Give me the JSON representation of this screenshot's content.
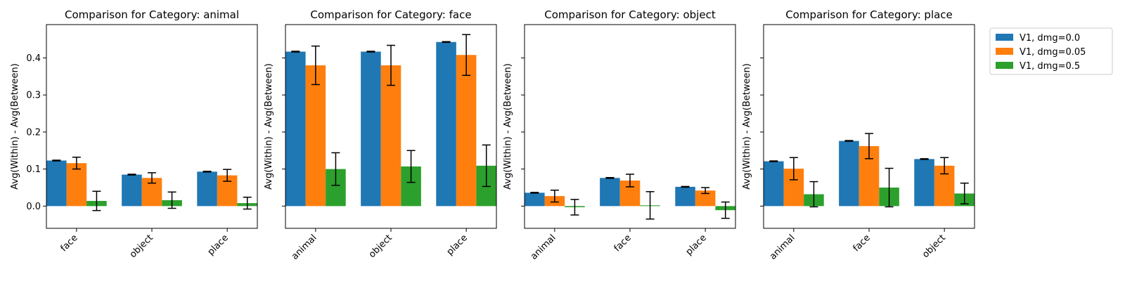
{
  "chart_data": [
    {
      "type": "bar",
      "title": "Comparison for Category: animal",
      "ylabel": "Avg(Within) - Avg(Between)",
      "ylim": [
        -0.06,
        0.49
      ],
      "yticks": [
        "0.0",
        "0.1",
        "0.2",
        "0.3",
        "0.4"
      ],
      "categories": [
        "face",
        "object",
        "place"
      ],
      "series": [
        {
          "name": "V1, dmg=0.0",
          "values": [
            0.123,
            0.085,
            0.093
          ],
          "errors": [
            0.001,
            0.001,
            0.001
          ]
        },
        {
          "name": "V1, dmg=0.05",
          "values": [
            0.116,
            0.076,
            0.083
          ],
          "errors": [
            0.016,
            0.014,
            0.016
          ]
        },
        {
          "name": "V1, dmg=0.5",
          "values": [
            0.014,
            0.016,
            0.008
          ],
          "errors": [
            0.026,
            0.022,
            0.016
          ]
        }
      ]
    },
    {
      "type": "bar",
      "title": "Comparison for Category: face",
      "ylabel": "Avg(Within) - Avg(Between)",
      "ylim": [
        -0.06,
        0.49
      ],
      "categories": [
        "animal",
        "object",
        "place"
      ],
      "series": [
        {
          "name": "V1, dmg=0.0",
          "values": [
            0.417,
            0.417,
            0.443
          ],
          "errors": [
            0.001,
            0.001,
            0.001
          ]
        },
        {
          "name": "V1, dmg=0.05",
          "values": [
            0.38,
            0.38,
            0.408
          ],
          "errors": [
            0.052,
            0.054,
            0.055
          ]
        },
        {
          "name": "V1, dmg=0.5",
          "values": [
            0.1,
            0.107,
            0.109
          ],
          "errors": [
            0.044,
            0.043,
            0.056
          ]
        }
      ]
    },
    {
      "type": "bar",
      "title": "Comparison for Category: object",
      "ylabel": "Avg(Within) - Avg(Between)",
      "ylim": [
        -0.06,
        0.49
      ],
      "categories": [
        "animal",
        "face",
        "place"
      ],
      "series": [
        {
          "name": "V1, dmg=0.0",
          "values": [
            0.036,
            0.076,
            0.052
          ],
          "errors": [
            0.001,
            0.001,
            0.001
          ]
        },
        {
          "name": "V1, dmg=0.05",
          "values": [
            0.027,
            0.069,
            0.042
          ],
          "errors": [
            0.016,
            0.017,
            0.008
          ]
        },
        {
          "name": "V1, dmg=0.5",
          "values": [
            -0.003,
            0.002,
            -0.011
          ],
          "errors": [
            0.021,
            0.037,
            0.022
          ]
        }
      ]
    },
    {
      "type": "bar",
      "title": "Comparison for Category: place",
      "ylabel": "Avg(Within) - Avg(Between)",
      "ylim": [
        -0.06,
        0.49
      ],
      "categories": [
        "animal",
        "face",
        "object"
      ],
      "series": [
        {
          "name": "V1, dmg=0.0",
          "values": [
            0.121,
            0.176,
            0.127
          ],
          "errors": [
            0.001,
            0.001,
            0.001
          ]
        },
        {
          "name": "V1, dmg=0.05",
          "values": [
            0.101,
            0.162,
            0.109
          ],
          "errors": [
            0.03,
            0.034,
            0.022
          ]
        },
        {
          "name": "V1, dmg=0.5",
          "values": [
            0.032,
            0.05,
            0.034
          ],
          "errors": [
            0.034,
            0.052,
            0.028
          ]
        }
      ]
    }
  ],
  "legend": {
    "entries": [
      "V1, dmg=0.0",
      "V1, dmg=0.05",
      "V1, dmg=0.5"
    ],
    "placement": "outside-right-top"
  },
  "colors": [
    "#1f77b4",
    "#ff7f0e",
    "#2ca02c"
  ]
}
